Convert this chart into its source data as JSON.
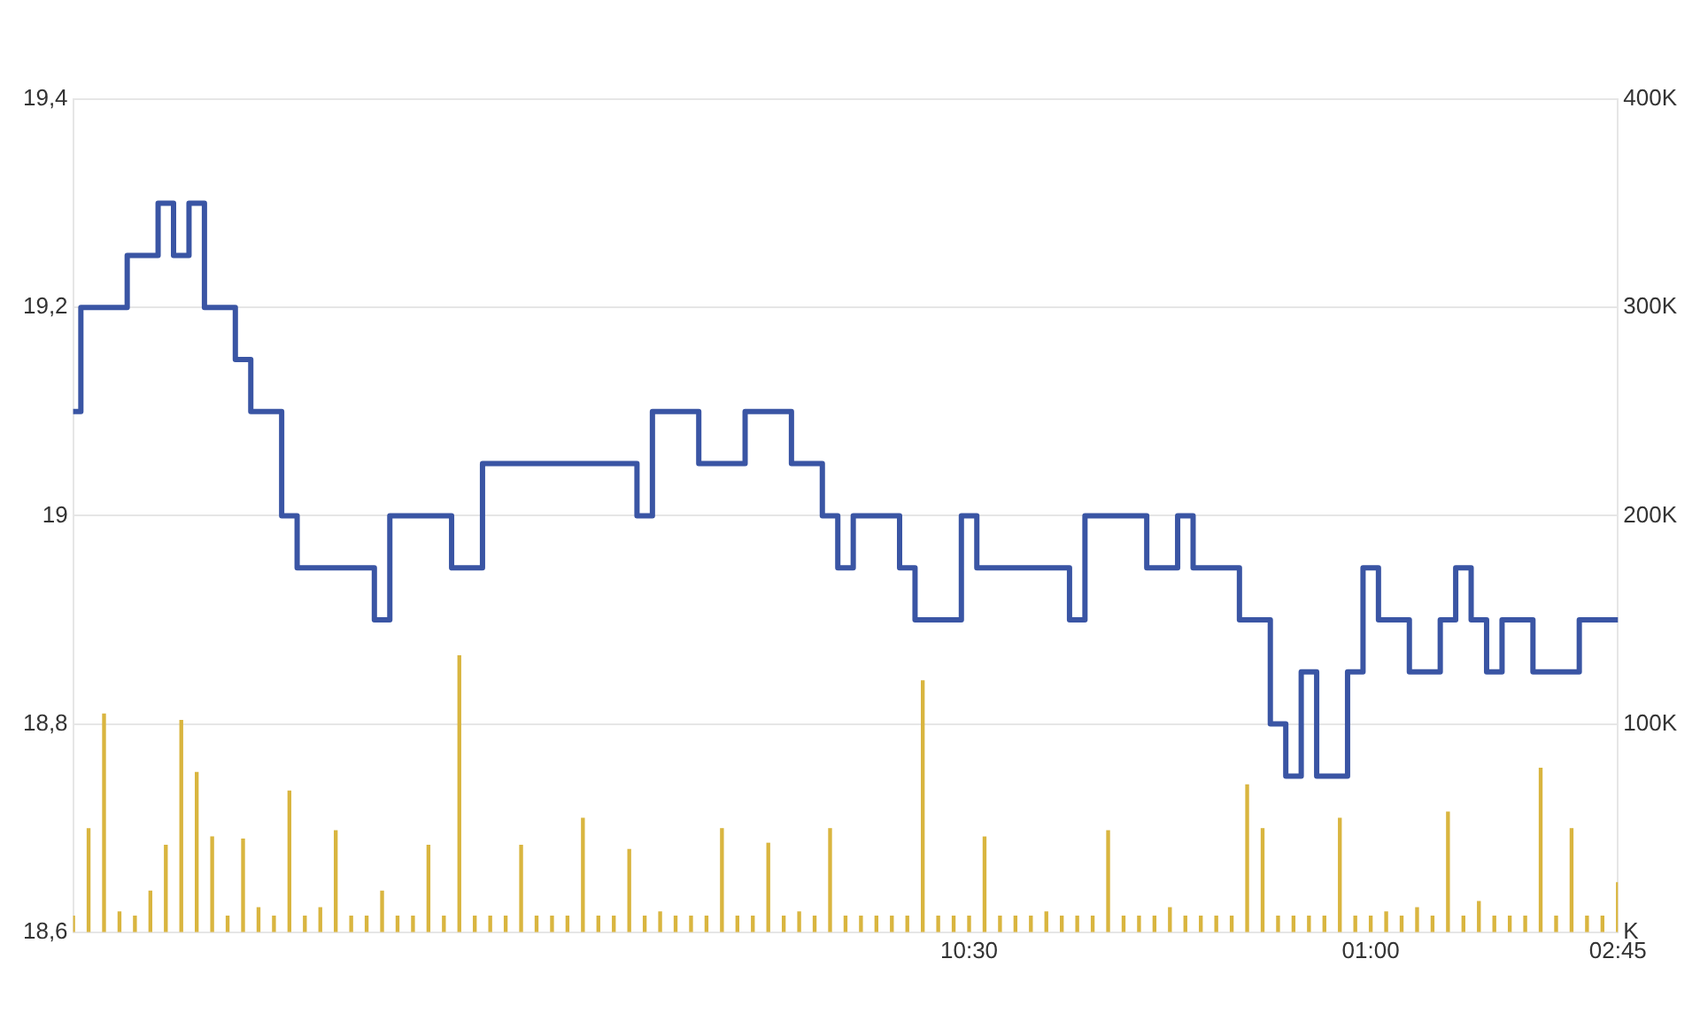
{
  "chart_data": {
    "type": "step",
    "categories": [
      null,
      null,
      null,
      null,
      null,
      null,
      null,
      null,
      null,
      null,
      null,
      null,
      null,
      null,
      null,
      null,
      null,
      null,
      null,
      null,
      null,
      null,
      null,
      null,
      null,
      null,
      null,
      null,
      null,
      null,
      null,
      null,
      null,
      null,
      null,
      null,
      null,
      null,
      null,
      null,
      null,
      null,
      null,
      null,
      null,
      null,
      null,
      null,
      null,
      null,
      null,
      null,
      null,
      null,
      null,
      null,
      null,
      null,
      "10:30",
      null,
      null,
      null,
      null,
      null,
      null,
      null,
      null,
      null,
      null,
      null,
      null,
      null,
      null,
      null,
      null,
      null,
      null,
      null,
      null,
      null,
      null,
      null,
      null,
      null,
      "01:00",
      null,
      null,
      null,
      null,
      null,
      null,
      null,
      null,
      null,
      null,
      null,
      null,
      null,
      null,
      null,
      "02:45"
    ],
    "ylim": [
      18.6,
      19.4
    ],
    "yticks": [
      {
        "value": 18.6,
        "label": "18,6"
      },
      {
        "value": 18.8,
        "label": "18,8"
      },
      {
        "value": 19,
        "label": "19"
      },
      {
        "value": 19.2,
        "label": "19,2"
      },
      {
        "value": 19.4,
        "label": "19,4"
      }
    ],
    "y2lim": [
      0,
      400000
    ],
    "y2ticks": [
      {
        "value": 0,
        "label": "K"
      },
      {
        "value": 100000,
        "label": "100K"
      },
      {
        "value": 200000,
        "label": "200K"
      },
      {
        "value": 300000,
        "label": "300K"
      },
      {
        "value": 400000,
        "label": "400K"
      }
    ],
    "grid": "y",
    "legend": false,
    "marker": "none",
    "series": [
      {
        "type": "bar",
        "axis": "y2",
        "color": "#d9b53f",
        "values": [
          8000,
          50000,
          105000,
          10000,
          8000,
          20000,
          42000,
          102000,
          77000,
          46000,
          8000,
          45000,
          12000,
          8000,
          68000,
          8000,
          12000,
          49000,
          8000,
          8000,
          20000,
          8000,
          8000,
          42000,
          8000,
          133000,
          8000,
          8000,
          8000,
          42000,
          8000,
          8000,
          8000,
          55000,
          8000,
          8000,
          40000,
          8000,
          10000,
          8000,
          8000,
          8000,
          50000,
          8000,
          8000,
          43000,
          8000,
          10000,
          8000,
          50000,
          8000,
          8000,
          8000,
          8000,
          8000,
          121000,
          8000,
          8000,
          8000,
          46000,
          8000,
          8000,
          8000,
          10000,
          8000,
          8000,
          8000,
          49000,
          8000,
          8000,
          8000,
          12000,
          8000,
          8000,
          8000,
          8000,
          71000,
          50000,
          8000,
          8000,
          8000,
          8000,
          55000,
          8000,
          8000,
          10000,
          8000,
          12000,
          8000,
          58000,
          8000,
          15000,
          8000,
          8000,
          8000,
          79000,
          8000,
          50000,
          8000,
          8000,
          24000
        ]
      },
      {
        "axis": "y",
        "color": "#3a55a4",
        "values": [
          19.1,
          19.2,
          19.2,
          19.2,
          19.25,
          19.25,
          19.3,
          19.25,
          19.3,
          19.2,
          19.2,
          19.15,
          19.1,
          19.1,
          19,
          18.95,
          18.95,
          18.95,
          18.95,
          18.95,
          18.9,
          19,
          19,
          19,
          19,
          18.95,
          18.95,
          19.05,
          19.05,
          19.05,
          19.05,
          19.05,
          19.05,
          19.05,
          19.05,
          19.05,
          19.05,
          19,
          19.1,
          19.1,
          19.1,
          19.05,
          19.05,
          19.05,
          19.1,
          19.1,
          19.1,
          19.05,
          19.05,
          19,
          18.95,
          19,
          19,
          19,
          18.95,
          18.9,
          18.9,
          18.9,
          19,
          18.95,
          18.95,
          18.95,
          18.95,
          18.95,
          18.95,
          18.9,
          19,
          19,
          19,
          19,
          18.95,
          18.95,
          19,
          18.95,
          18.95,
          18.95,
          18.9,
          18.9,
          18.8,
          18.75,
          18.85,
          18.75,
          18.75,
          18.85,
          18.95,
          18.9,
          18.9,
          18.85,
          18.85,
          18.9,
          18.95,
          18.9,
          18.85,
          18.9,
          18.9,
          18.85,
          18.85,
          18.85,
          18.9,
          18.9,
          18.9
        ]
      }
    ]
  }
}
